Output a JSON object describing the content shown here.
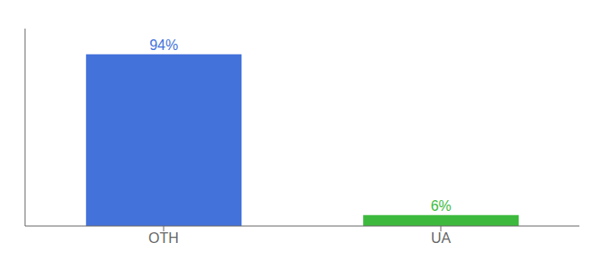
{
  "chart_data": {
    "type": "bar",
    "categories": [
      "OTH",
      "UA"
    ],
    "values": [
      94,
      6
    ],
    "value_labels": [
      "94%",
      "6%"
    ],
    "colors": [
      "#4472db",
      "#3dba3d"
    ],
    "ylim": [
      0,
      108
    ],
    "data_labels": true,
    "tick_labels": "x",
    "grid": false
  }
}
